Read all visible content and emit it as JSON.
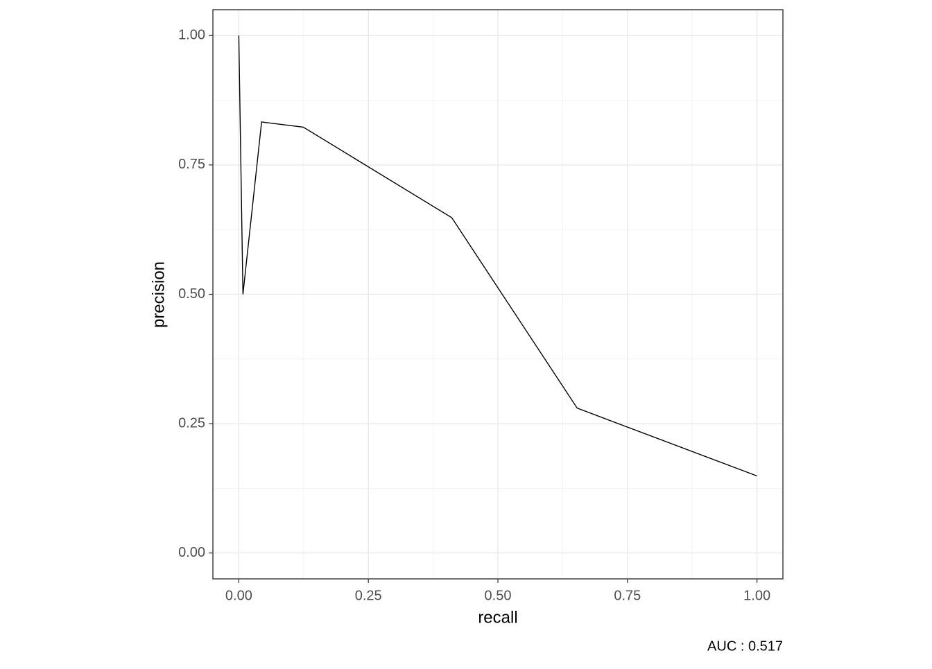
{
  "chart_data": {
    "type": "line",
    "x_label": "recall",
    "y_label": "precision",
    "caption": "AUC : 0.517",
    "x": [
      0,
      0.008,
      0.044,
      0.1245,
      0.411,
      0.653,
      1.0
    ],
    "values": [
      1.0,
      0.5,
      0.833,
      0.823,
      0.648,
      0.28,
      0.149
    ],
    "color": "#000000",
    "xlim": [
      -0.05,
      1.05
    ],
    "ylim": [
      -0.05,
      1.05
    ],
    "xticks": [
      {
        "value": 0,
        "label": "0.00"
      },
      {
        "value": 0.25,
        "label": "0.25"
      },
      {
        "value": 0.5,
        "label": "0.50"
      },
      {
        "value": 0.75,
        "label": "0.75"
      },
      {
        "value": 1,
        "label": "1.00"
      }
    ],
    "yticks": [
      {
        "value": 0,
        "label": "0.00"
      },
      {
        "value": 0.25,
        "label": "0.25"
      },
      {
        "value": 0.5,
        "label": "0.50"
      },
      {
        "value": 0.75,
        "label": "0.75"
      },
      {
        "value": 1,
        "label": "1.00"
      }
    ],
    "grid": true
  }
}
